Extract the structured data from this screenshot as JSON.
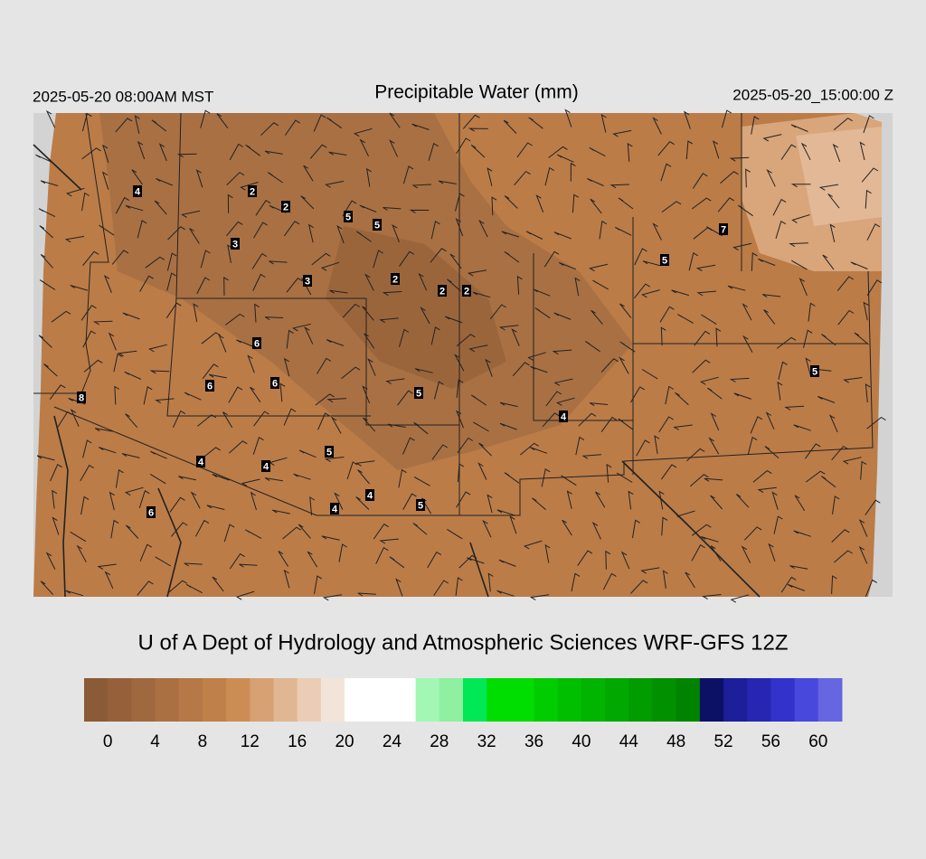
{
  "header": {
    "left": "2025-05-20 08:00AM MST",
    "title": "Precipitable Water (mm)",
    "right": "2025-05-20_15:00:00 Z"
  },
  "map": {
    "station_labels": [
      4,
      2,
      2,
      5,
      5,
      3,
      3,
      2,
      2,
      2,
      7,
      5,
      6,
      6,
      6,
      5,
      8,
      5,
      4,
      5,
      4,
      4,
      4,
      5,
      4,
      6
    ]
  },
  "credit": "U of A Dept of Hydrology and Atmospheric Sciences WRF-GFS 12Z",
  "colorbar": {
    "limits": [
      -2,
      62
    ],
    "colors": [
      "#8b5a36",
      "#96613a",
      "#a0683e",
      "#ab7042",
      "#b67846",
      "#c0804a",
      "#cc8d55",
      "#d8a174",
      "#e1b693",
      "#ebcdb5",
      "#f3e4d9",
      "#ffffff",
      "#ffffff",
      "#ffffff",
      "#a3f7b5",
      "#8ef0a0",
      "#00e855",
      "#00dd00",
      "#00dd00",
      "#00cc00",
      "#00bf00",
      "#00b400",
      "#00a800",
      "#009c00",
      "#009000",
      "#008400",
      "#0d1166",
      "#1c1f99",
      "#2626b3",
      "#3333cc",
      "#4848dd",
      "#6666e0"
    ],
    "ticks": [
      0,
      4,
      8,
      12,
      16,
      20,
      24,
      28,
      32,
      36,
      40,
      44,
      48,
      52,
      56,
      60
    ]
  }
}
